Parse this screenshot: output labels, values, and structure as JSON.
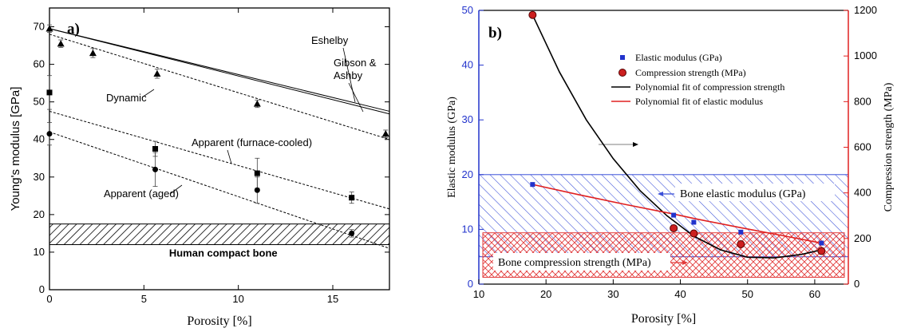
{
  "chart_data": [
    {
      "panel_label": "a)",
      "type": "scatter",
      "xlabel": "Porosity [%]",
      "ylabel": "Young's modulus [GPa]",
      "xlim": [
        0,
        18
      ],
      "ylim": [
        0,
        75
      ],
      "x_ticks": [
        0,
        5,
        10,
        15
      ],
      "y_ticks": [
        0,
        10,
        20,
        30,
        40,
        50,
        60,
        70
      ],
      "grid": false,
      "series": [
        {
          "name": "Dynamic",
          "marker": "triangle",
          "x": [
            0,
            0.6,
            2.3,
            5.7,
            11,
            17.8
          ],
          "y": [
            69.5,
            65.5,
            63,
            57.5,
            49.5,
            41.5
          ],
          "err": [
            1,
            1,
            1.2,
            1.2,
            1,
            1
          ]
        },
        {
          "name": "Apparent (furnace-cooled)",
          "marker": "square",
          "x": [
            0,
            5.6,
            11,
            16
          ],
          "y": [
            52.5,
            37.5,
            31,
            24.5
          ],
          "err": [
            4.5,
            2,
            4,
            1.5
          ]
        },
        {
          "name": "Apparent (aged)",
          "marker": "circle",
          "x": [
            0,
            5.6,
            11,
            16
          ],
          "y": [
            41.5,
            32,
            26.5,
            15
          ],
          "err": [
            3,
            4.5,
            3.5,
            1
          ]
        }
      ],
      "lines": [
        {
          "name": "Eshelby",
          "style": "solid",
          "x": [
            0,
            18
          ],
          "y": [
            69.5,
            47.5
          ]
        },
        {
          "name": "Gibson & Ashby",
          "style": "solid",
          "x": [
            0,
            18
          ],
          "y": [
            69.5,
            46.8
          ]
        },
        {
          "name": "Dynamic",
          "style": "dashed",
          "x": [
            0,
            18
          ],
          "y": [
            68,
            40
          ]
        },
        {
          "name": "Apparent (furnace-cooled)",
          "style": "dashed",
          "x": [
            0,
            18
          ],
          "y": [
            47.5,
            21.5
          ]
        },
        {
          "name": "Apparent (aged)",
          "style": "dashed",
          "x": [
            0,
            18
          ],
          "y": [
            42,
            11
          ]
        }
      ],
      "band": {
        "y": [
          12,
          17.5
        ],
        "label": "Human compact bone"
      },
      "annotations": [
        "Eshelby",
        "Gibson &",
        "Ashby",
        "Dynamic",
        "Apparent (furnace-cooled)",
        "Apparent (aged)"
      ]
    },
    {
      "panel_label": "b)",
      "type": "scatter",
      "xlabel": "Porosity [%]",
      "ylabel": "Elastic modulus (GPa)",
      "ylabel_right": "Compression strength (MPa)",
      "xlim": [
        10,
        65
      ],
      "ylim": [
        0,
        50
      ],
      "ylim_right": [
        0,
        1200
      ],
      "x_ticks": [
        10,
        20,
        30,
        40,
        50,
        60
      ],
      "y_ticks": [
        0,
        10,
        20,
        30,
        40,
        50
      ],
      "y_ticks_right": [
        0,
        200,
        400,
        600,
        800,
        1000,
        1200
      ],
      "grid": false,
      "legend": "top-center",
      "series": [
        {
          "name": "Elastic modulus (GPa)",
          "marker": "square",
          "axis": "left",
          "x": [
            18,
            39,
            42,
            49,
            61
          ],
          "y": [
            18.2,
            12.6,
            11.3,
            9.5,
            7.5
          ]
        },
        {
          "name": "Compression strength (MPa)",
          "marker": "circle",
          "axis": "right",
          "x": [
            18,
            39,
            42,
            49,
            61
          ],
          "y": [
            1180,
            245,
            222,
            175,
            145
          ]
        }
      ],
      "fits": [
        {
          "name": "Polynomial fit of compression strength",
          "axis": "right",
          "x": [
            18,
            22,
            26,
            30,
            34,
            38,
            42,
            46,
            50,
            54,
            58,
            61
          ],
          "y": [
            1180,
            930,
            720,
            550,
            410,
            300,
            210,
            150,
            118,
            115,
            130,
            150
          ]
        },
        {
          "name": "Polynomial fit of elastic modulus",
          "axis": "left",
          "x": [
            18,
            25,
            32,
            39,
            42,
            49,
            55,
            61
          ],
          "y": [
            18.2,
            16.3,
            14.5,
            12.8,
            12.0,
            10.3,
            8.9,
            7.5
          ]
        }
      ],
      "bands": [
        {
          "label": "Bone elastic modulus (GPa)",
          "axis": "left",
          "y": [
            5,
            20
          ],
          "color": "#3a4fd8"
        },
        {
          "label": "Bone compression strength (MPa)",
          "axis": "right",
          "y": [
            30,
            225
          ],
          "color": "#e23a3a"
        }
      ]
    }
  ]
}
